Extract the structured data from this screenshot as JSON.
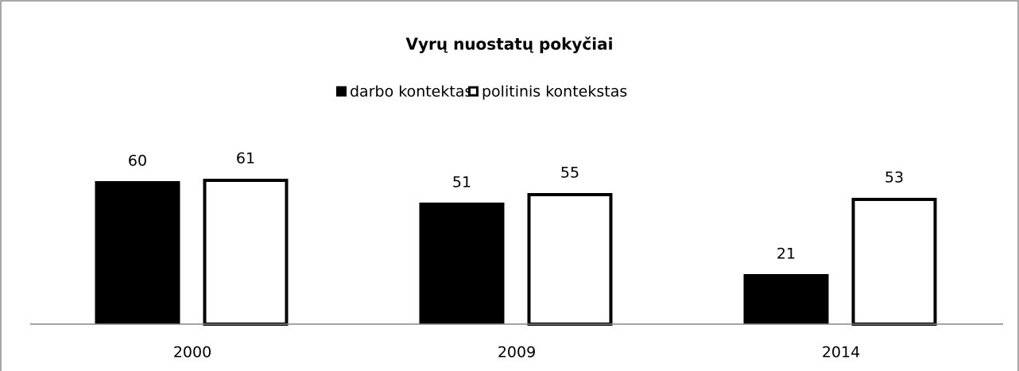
{
  "chart_data": {
    "type": "bar",
    "title": "Vyrų nuostatų pokyčiai",
    "categories": [
      "2000",
      "2009",
      "2014"
    ],
    "series": [
      {
        "name": "darbo kontektas",
        "color": "#000000",
        "values": [
          60,
          51,
          21
        ]
      },
      {
        "name": "politinis kontekstas",
        "color": "#ffffff",
        "values": [
          61,
          55,
          53
        ]
      }
    ],
    "ylim": [
      0,
      70
    ],
    "legend": "top",
    "data_labels": true
  }
}
